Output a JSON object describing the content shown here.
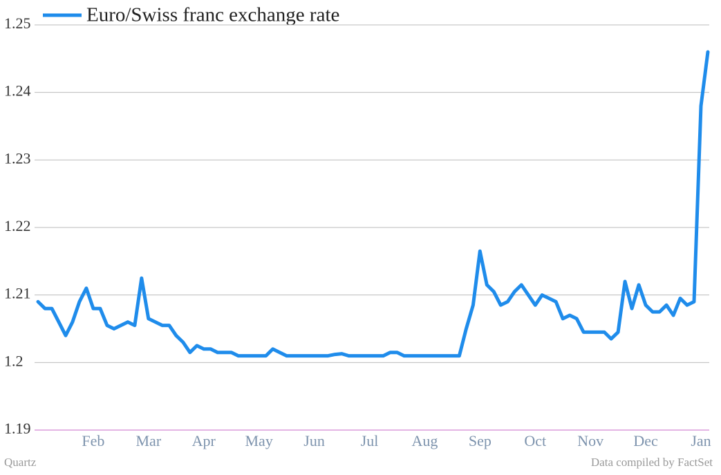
{
  "chart_data": {
    "type": "line",
    "source": "Quartz",
    "note": "Data compiled by FactSet",
    "categories": [
      null,
      null,
      null,
      null,
      null,
      null,
      null,
      null,
      "Feb",
      null,
      null,
      null,
      null,
      null,
      null,
      null,
      "Mar",
      null,
      null,
      null,
      null,
      null,
      null,
      null,
      "Apr",
      null,
      null,
      null,
      null,
      null,
      null,
      null,
      "May",
      null,
      null,
      null,
      null,
      null,
      null,
      null,
      "Jun",
      null,
      null,
      null,
      null,
      null,
      null,
      null,
      "Jul",
      null,
      null,
      null,
      null,
      null,
      null,
      null,
      "Aug",
      null,
      null,
      null,
      null,
      null,
      null,
      null,
      "Sep",
      null,
      null,
      null,
      null,
      null,
      null,
      null,
      "Oct",
      null,
      null,
      null,
      null,
      null,
      null,
      null,
      "Nov",
      null,
      null,
      null,
      null,
      null,
      null,
      null,
      "Dec",
      null,
      null,
      null,
      null,
      null,
      null,
      null,
      "Jan",
      null
    ],
    "series": [
      {
        "name": "Euro/Swiss franc exchange rate",
        "color": "#1f8ceb",
        "values": [
          1.209,
          1.208,
          1.208,
          1.206,
          1.204,
          1.206,
          1.209,
          1.211,
          1.208,
          1.208,
          1.2055,
          1.205,
          1.2055,
          1.206,
          1.2055,
          1.2125,
          1.2065,
          1.206,
          1.2055,
          1.2055,
          1.204,
          1.203,
          1.2015,
          1.2025,
          1.202,
          1.202,
          1.2015,
          1.2015,
          1.2015,
          1.201,
          1.201,
          1.201,
          1.201,
          1.201,
          1.202,
          1.2015,
          1.201,
          1.201,
          1.201,
          1.201,
          1.201,
          1.201,
          1.201,
          1.2012,
          1.2013,
          1.201,
          1.201,
          1.201,
          1.201,
          1.201,
          1.201,
          1.2015,
          1.2015,
          1.201,
          1.201,
          1.201,
          1.201,
          1.201,
          1.201,
          1.201,
          1.201,
          1.201,
          1.205,
          1.2085,
          1.2165,
          1.2115,
          1.2105,
          1.2085,
          1.209,
          1.2105,
          1.2115,
          1.21,
          1.2085,
          1.21,
          1.2095,
          1.209,
          1.2065,
          1.207,
          1.2065,
          1.2045,
          1.2045,
          1.2045,
          1.2045,
          1.2035,
          1.2045,
          1.212,
          1.208,
          1.2115,
          1.2085,
          1.2075,
          1.2075,
          1.2085,
          1.207,
          1.2095,
          1.2085,
          1.209,
          1.238,
          1.246
        ]
      }
    ],
    "ylim": [
      1.19,
      1.25
    ],
    "yticks": [
      1.19,
      1.2,
      1.21,
      1.22,
      1.23,
      1.24,
      1.25
    ],
    "grid": true,
    "baseline_color": "#c86ac8"
  }
}
